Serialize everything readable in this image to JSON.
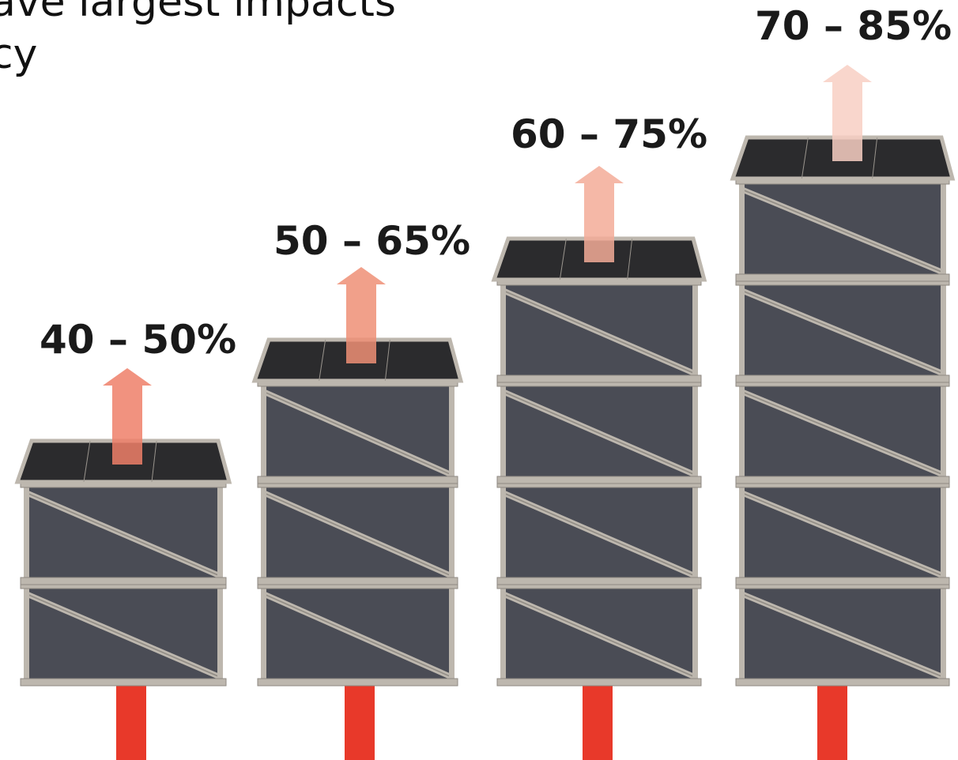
{
  "heading": {
    "line1": "ave largest impacts",
    "line2": "cy"
  },
  "columns": [
    {
      "label": "40 – 50%",
      "tiers": 2,
      "arrow_color": "#ef7f68"
    },
    {
      "label": "50 – 65%",
      "tiers": 3,
      "arrow_color": "#ef8f76"
    },
    {
      "label": "60 – 75%",
      "tiers": 4,
      "arrow_color": "#f3ab98"
    },
    {
      "label": "70 – 85%",
      "tiers": 5,
      "arrow_color": "#f8cfc3"
    }
  ],
  "colors": {
    "panel": "#4a4c55",
    "top": "#2b2b2d",
    "frame": "#bdb7ae",
    "input_pipe": "#e8392a"
  }
}
